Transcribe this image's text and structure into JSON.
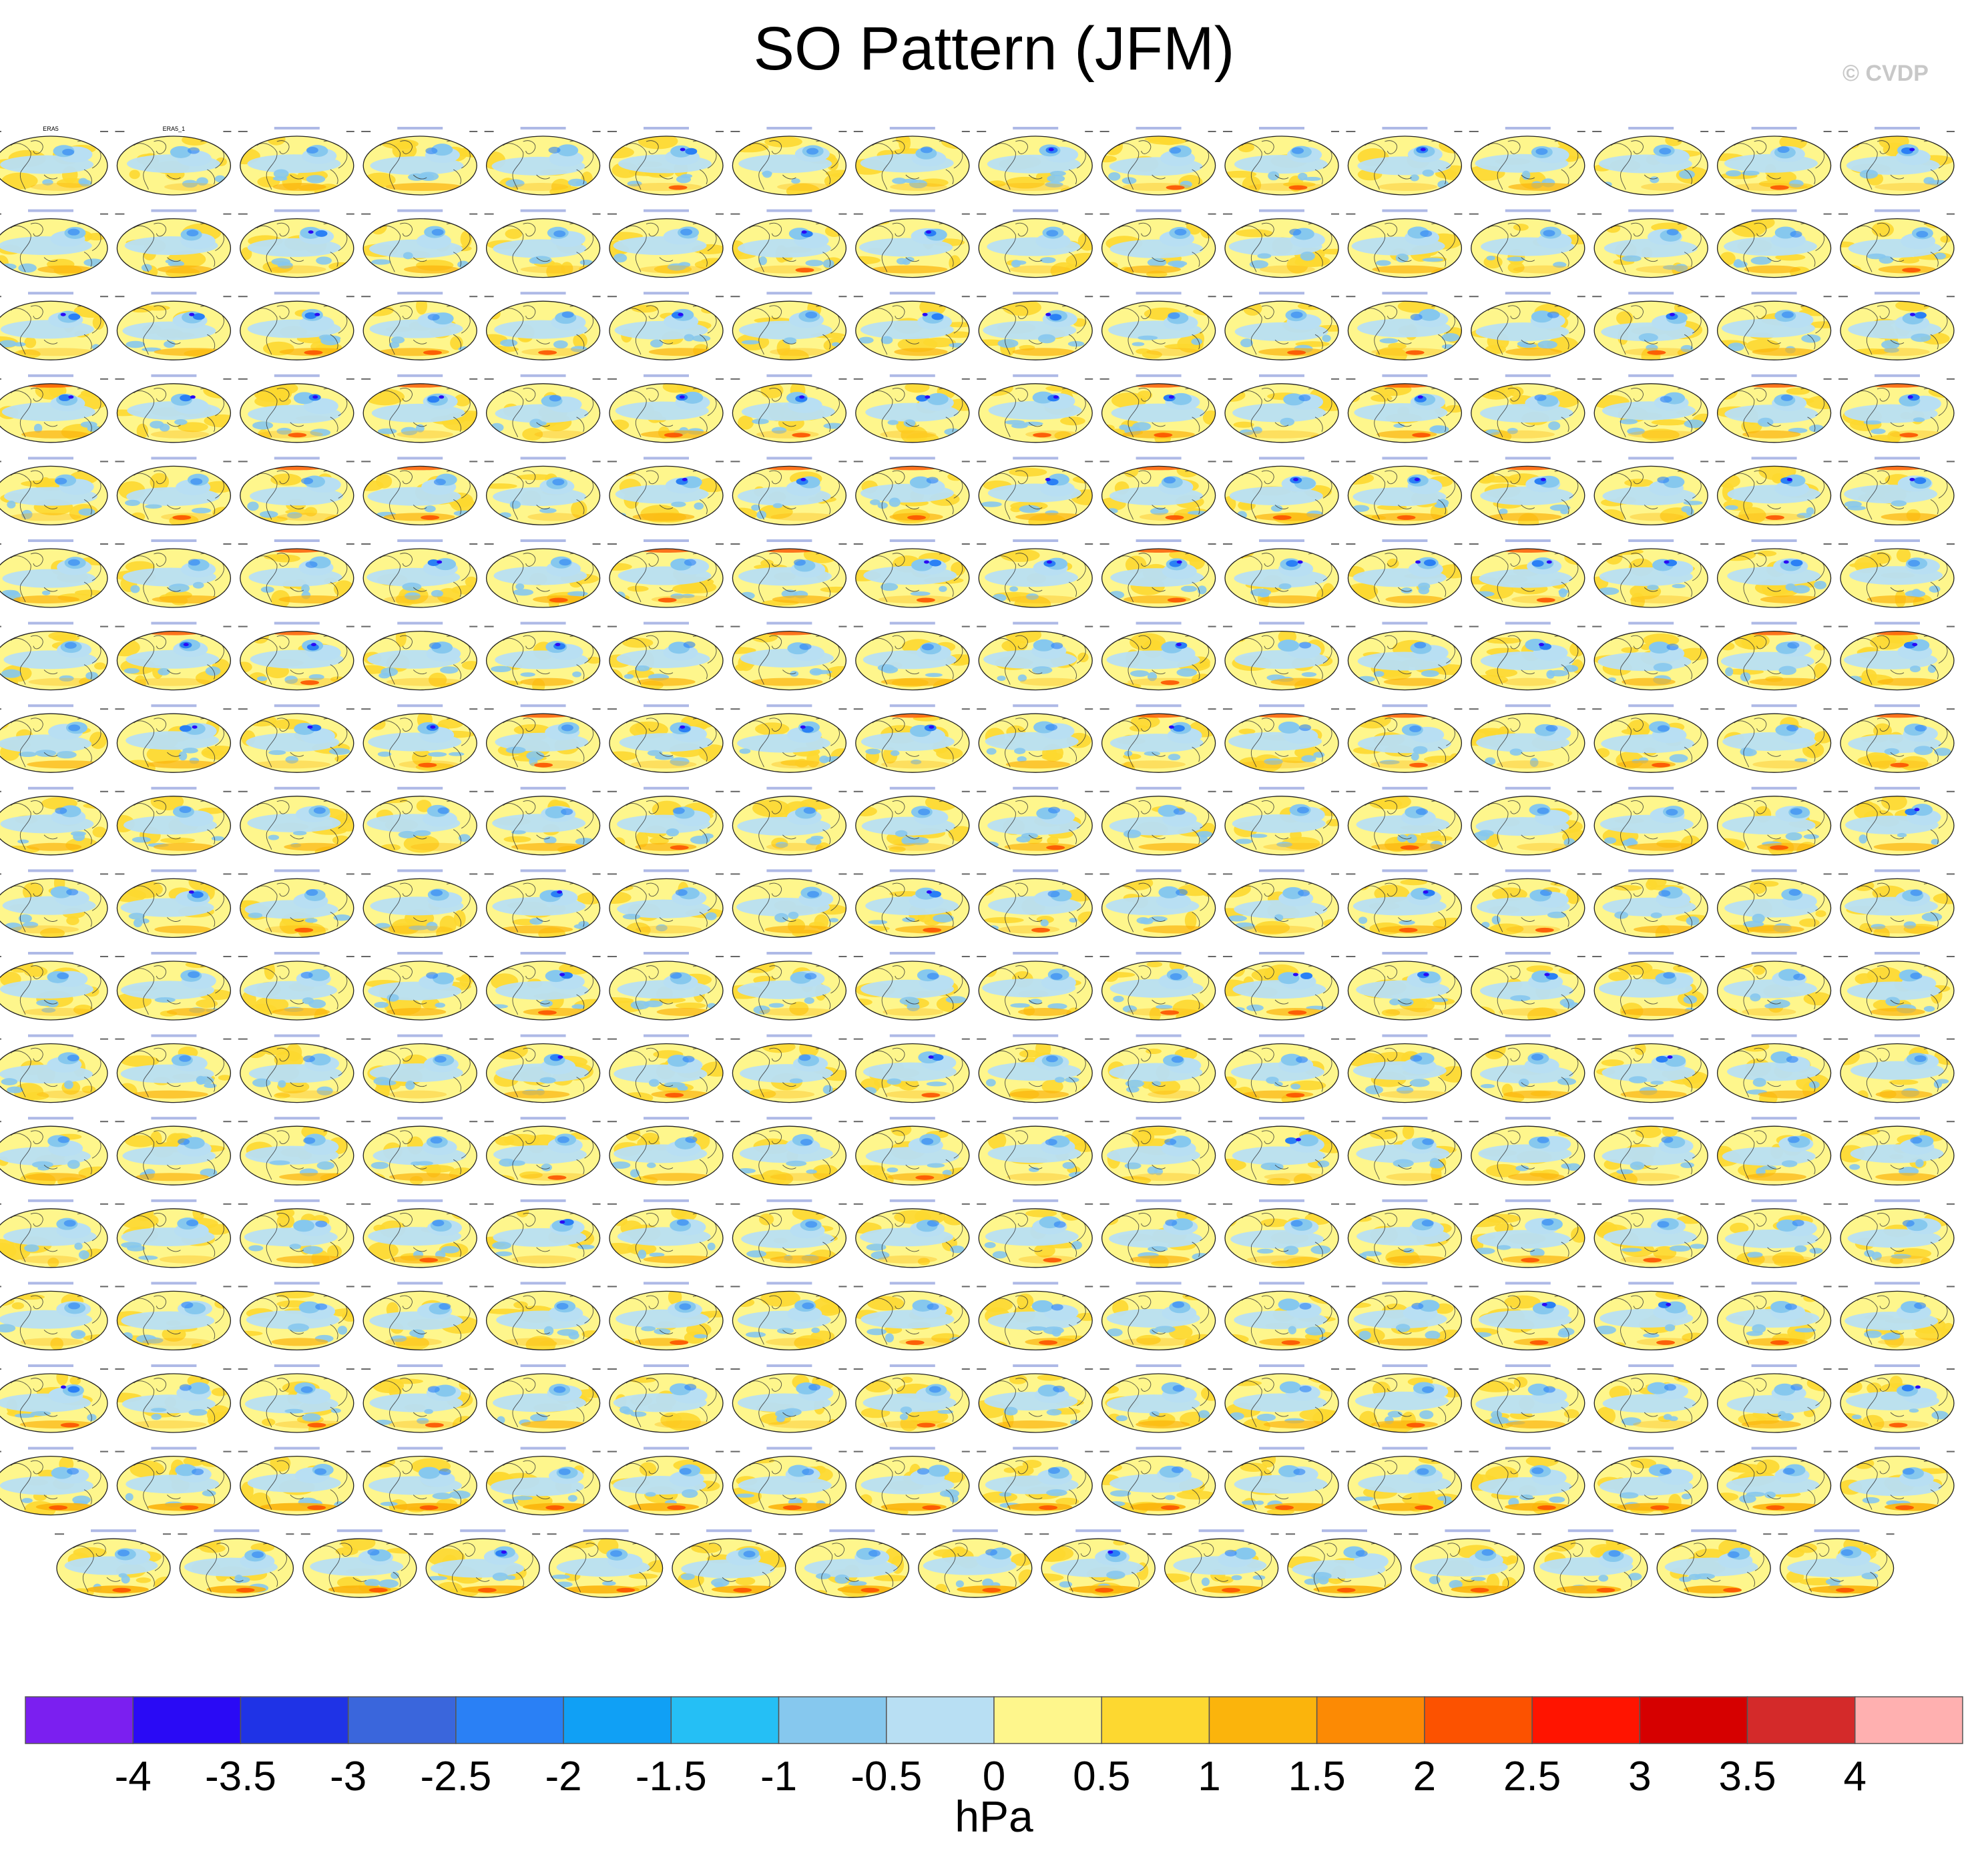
{
  "title": "SO Pattern (JFM)",
  "watermark": "© CVDP",
  "colorbar": {
    "unit": "hPa",
    "tick_labels": [
      "-4",
      "-3.5",
      "-3",
      "-2.5",
      "-2",
      "-1.5",
      "-1",
      "-0.5",
      "0",
      "0.5",
      "1",
      "1.5",
      "2",
      "2.5",
      "3",
      "3.5",
      "4"
    ],
    "colors": [
      "#7b1ff0",
      "#2a0af5",
      "#1f33e6",
      "#3a66dc",
      "#2a80f5",
      "#10a0f5",
      "#25bff5",
      "#86c8ee",
      "#b8dff3",
      "#fef68c",
      "#fdd830",
      "#fbb40c",
      "#fc8a04",
      "#fc5200",
      "#ff1400",
      "#d60000",
      "#d42a2a",
      "#ffb0b0"
    ]
  },
  "chart_data": {
    "type": "heatmap",
    "title": "SO Pattern (JFM)",
    "description_unit": "hPa",
    "layout": {
      "rows": 18,
      "columns_per_full_row": 16,
      "last_row_panels": 15,
      "total_panels": 287
    },
    "panel_titles": [
      "ERA5",
      "ERA5_1"
    ],
    "colorbar_levels": [
      -4,
      -3.5,
      -3,
      -2.5,
      -2,
      -1.5,
      -1,
      -0.5,
      0,
      0.5,
      1,
      1.5,
      2,
      2.5,
      3,
      3.5,
      4
    ]
  }
}
